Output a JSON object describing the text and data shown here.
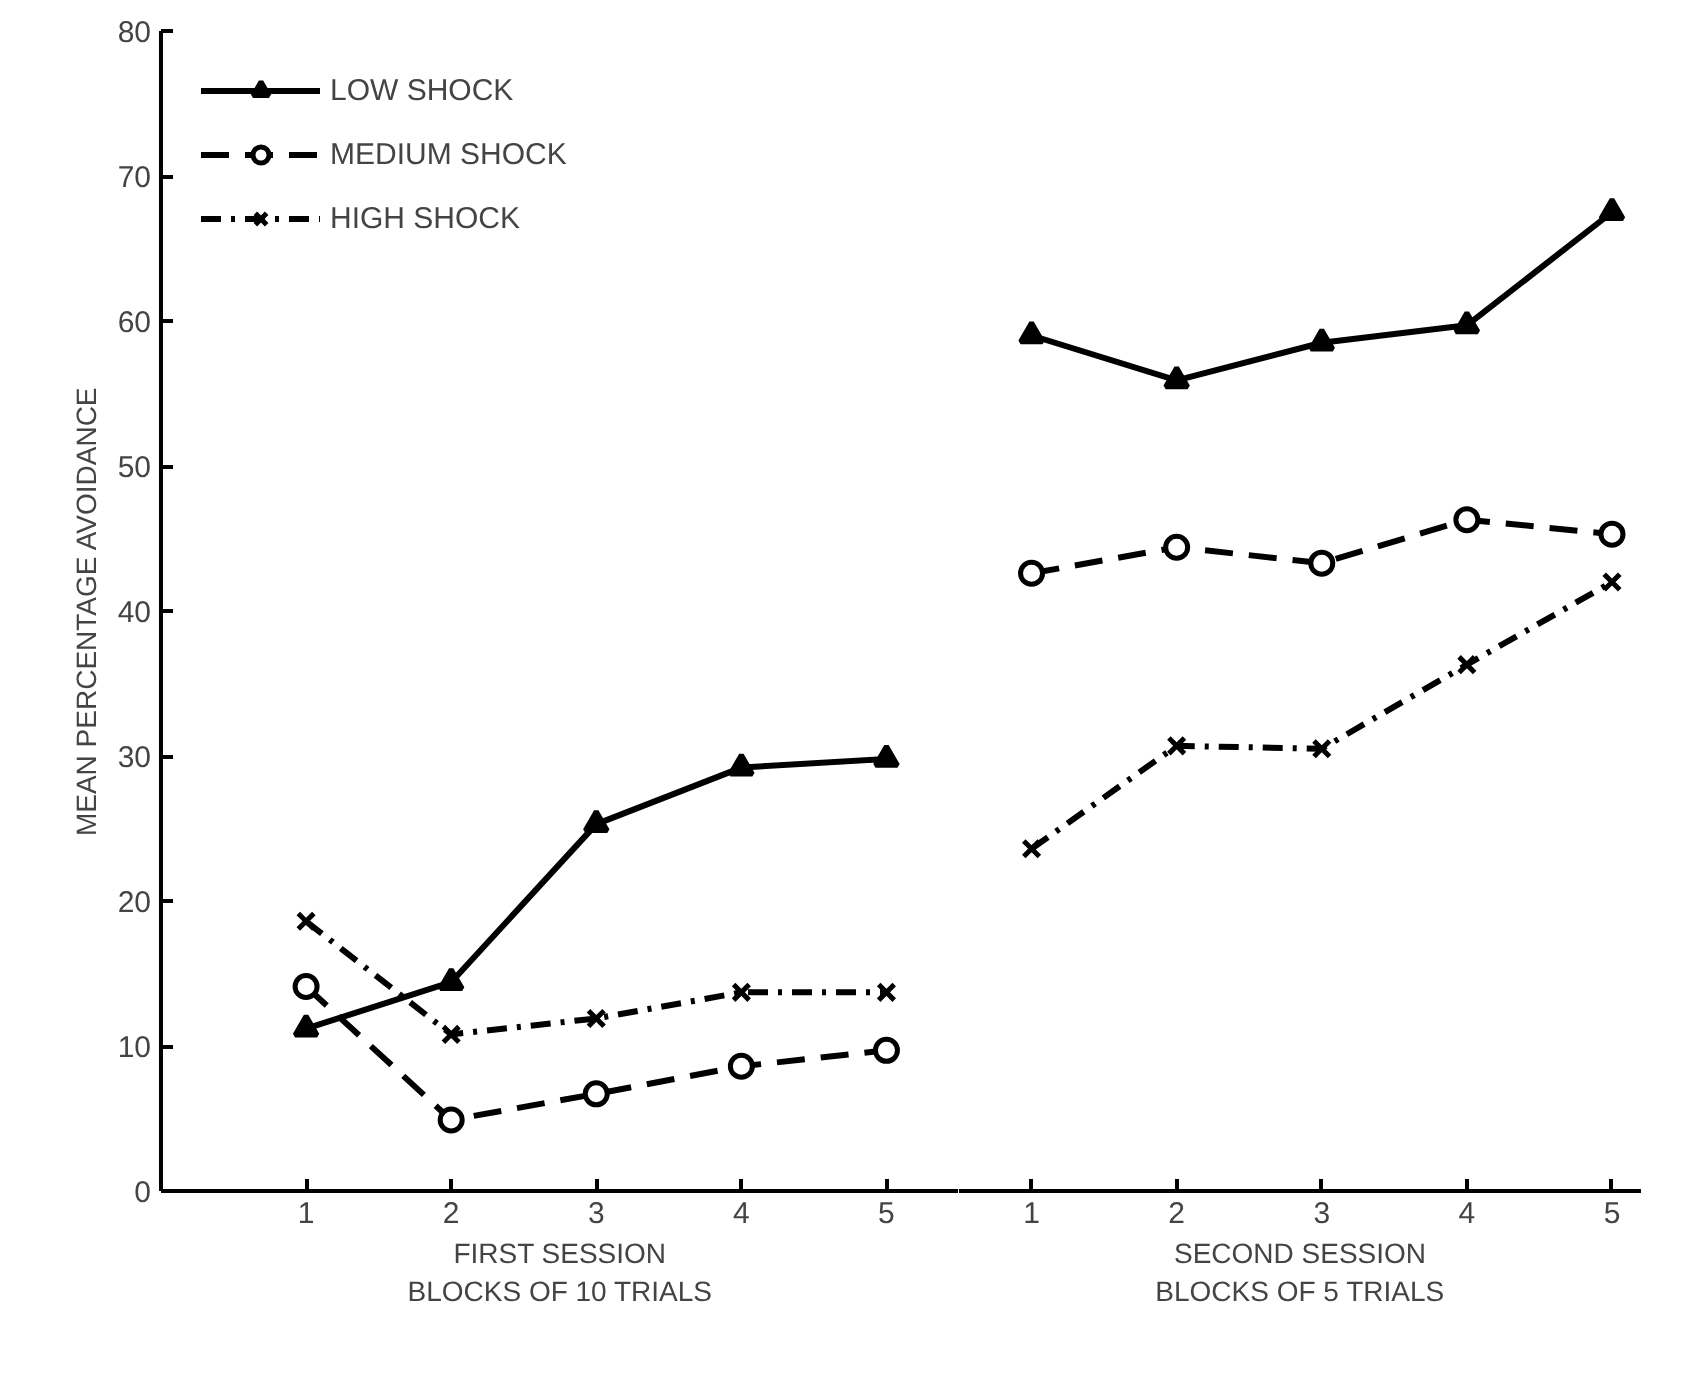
{
  "chart_data": [
    {
      "type": "line",
      "ylabel": "MEAN PERCENTAGE AVOIDANCE",
      "xlabel": "FIRST SESSION\nBLOCKS OF 10 TRIALS",
      "categories": [
        "1",
        "2",
        "3",
        "4",
        "5"
      ],
      "ylim": [
        0,
        80
      ],
      "yticks": [
        0,
        10,
        20,
        30,
        40,
        50,
        60,
        70,
        80
      ],
      "series": [
        {
          "name": "LOW SHOCK",
          "color": "#000000",
          "marker": "triangle",
          "line_style": "solid",
          "values": [
            11.2,
            14.4,
            25.3,
            29.2,
            29.8
          ]
        },
        {
          "name": "MEDIUM SHOCK",
          "color": "#000000",
          "marker": "circle",
          "line_style": "dashed",
          "values": [
            14.1,
            4.9,
            6.7,
            8.6,
            9.7
          ]
        },
        {
          "name": "HIGH SHOCK",
          "color": "#000000",
          "marker": "cross",
          "line_style": "dashdot",
          "values": [
            18.6,
            10.8,
            11.9,
            13.7,
            13.7
          ]
        }
      ],
      "legend": "top left",
      "grid": false
    },
    {
      "type": "line",
      "xlabel": "SECOND SESSION\nBLOCKS OF 5 TRIALS",
      "categories": [
        "1",
        "2",
        "3",
        "4",
        "5"
      ],
      "ylim": [
        0,
        80
      ],
      "yticks": [
        0,
        10,
        20,
        30,
        40,
        50,
        60,
        70,
        80
      ],
      "tick_labels": "x",
      "series": [
        {
          "color": "#000000",
          "marker": "triangle",
          "line_style": "solid",
          "values": [
            59.0,
            55.9,
            58.5,
            59.7,
            67.5
          ]
        },
        {
          "color": "#000000",
          "marker": "circle",
          "line_style": "dashed",
          "values": [
            42.6,
            44.4,
            43.3,
            46.3,
            45.3
          ]
        },
        {
          "color": "#000000",
          "marker": "cross",
          "line_style": "dashdot",
          "values": [
            23.6,
            30.7,
            30.5,
            36.3,
            42.0
          ]
        }
      ],
      "grid": false
    }
  ]
}
